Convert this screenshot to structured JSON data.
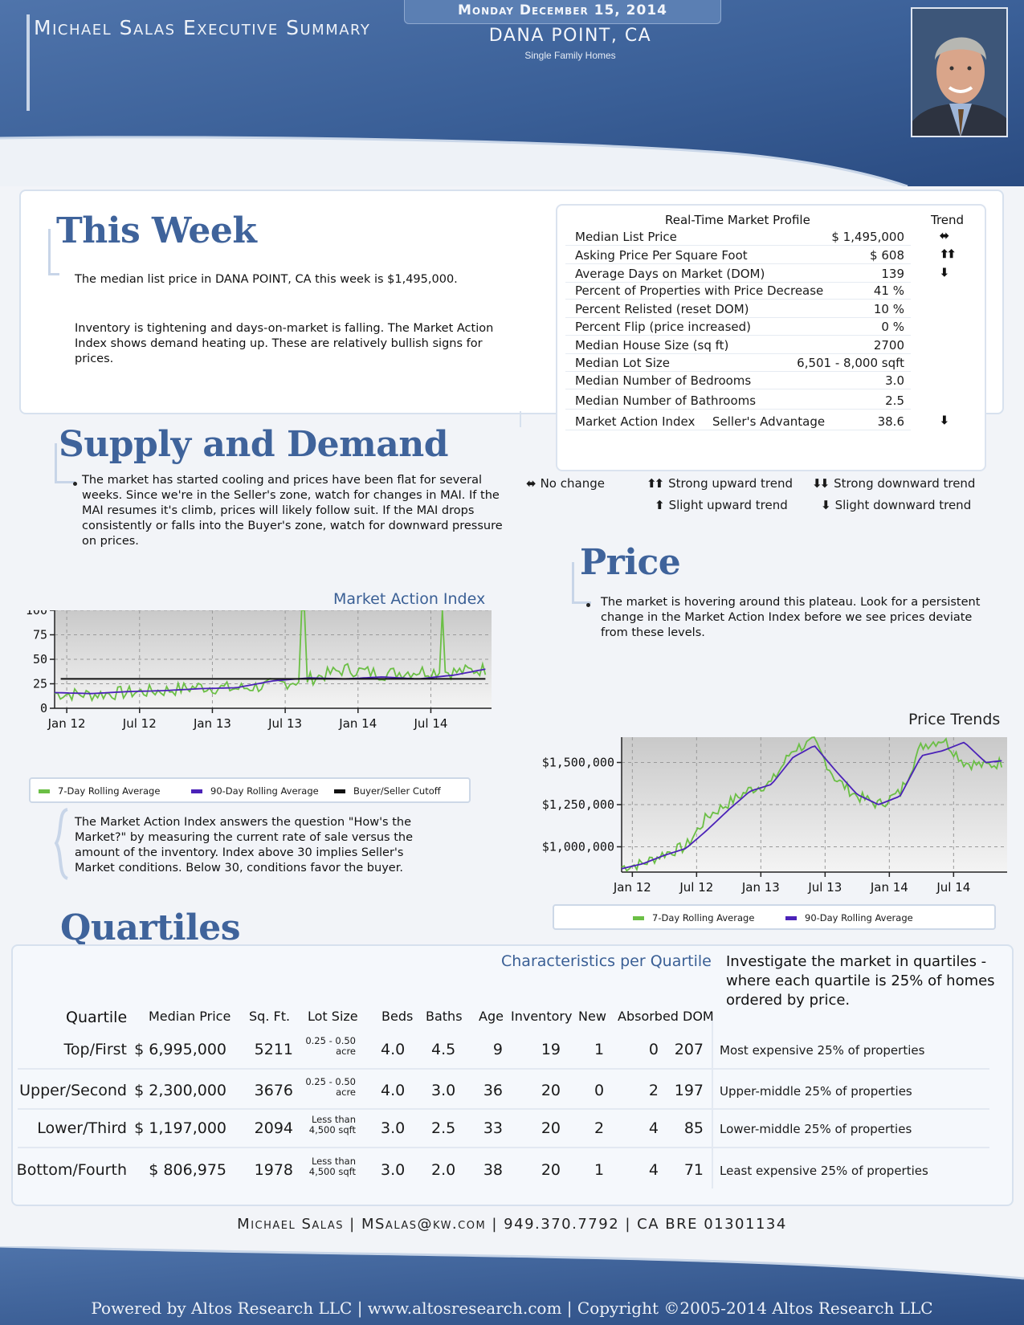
{
  "header": {
    "title": "Michael Salas Executive Summary",
    "date": "Monday December 15, 2014",
    "city": "DANA POINT, CA",
    "property_type": "Single Family Homes"
  },
  "this_week": {
    "title": "This Week",
    "paragraph1": "The median list price in DANA POINT, CA this week is $1,495,000.",
    "paragraph2": "Inventory is tightening and days-on-market is falling. The Market Action Index shows demand heating up. These are relatively bullish signs for prices."
  },
  "market_profile": {
    "title": "Real-Time Market Profile",
    "trend_header": "Trend",
    "rows": [
      {
        "label": "Median List Price",
        "mid": "",
        "value": "$ 1,495,000",
        "trend": "both"
      },
      {
        "label": "Asking Price Per Square Foot",
        "mid": "",
        "value": "$ 608",
        "trend": "strong-up"
      },
      {
        "label": "Average Days on Market (DOM)",
        "mid": "",
        "value": "139",
        "trend": "slight-down"
      },
      {
        "label": "Percent of Properties with Price Decrease",
        "mid": "",
        "value": "41 %",
        "trend": ""
      },
      {
        "label": "Percent Relisted (reset DOM)",
        "mid": "",
        "value": "10 %",
        "trend": ""
      },
      {
        "label": "Percent Flip (price increased)",
        "mid": "",
        "value": "0 %",
        "trend": ""
      },
      {
        "label": "Median House Size (sq ft)",
        "mid": "",
        "value": "2700",
        "trend": ""
      },
      {
        "label": "Median Lot Size",
        "mid": "",
        "value": "6,501 - 8,000 sqft",
        "trend": ""
      },
      {
        "label": "Median Number of Bedrooms",
        "mid": "",
        "value": "3.0",
        "trend": ""
      },
      {
        "label": "Median Number of Bathrooms",
        "mid": "",
        "value": "2.5",
        "trend": ""
      },
      {
        "label": "Market Action Index",
        "mid": "Seller's Advantage",
        "value": "38.6",
        "trend": "slight-down"
      }
    ],
    "legend": {
      "no_change": "No change",
      "strong_up": "Strong upward trend",
      "strong_down": "Strong downward trend",
      "slight_up": "Slight upward trend",
      "slight_down": "Slight downward trend"
    }
  },
  "supply_demand": {
    "title": "Supply and Demand",
    "text": "The market has started cooling and prices have been flat for several weeks.  Since we're in the Seller's zone, watch for changes in MAI.  If the MAI resumes it's climb, prices will likely follow suit.  If the MAI drops consistently or falls into the Buyer's zone, watch for downward pressure on prices.",
    "explainer": "The Market Action Index answers the question \"How's the Market?\" by measuring the current rate of sale versus the amount of the inventory.  Index above 30 implies Seller's Market conditions. Below 30, conditions favor the buyer."
  },
  "price": {
    "title": "Price",
    "text": "The market is hovering around this plateau. Look for a persistent change in the Market Action Index before we see prices deviate from these levels."
  },
  "chart_data": [
    {
      "type": "line",
      "title": "Market Action Index",
      "x_ticks": [
        "Jan 12",
        "Jul 12",
        "Jan 13",
        "Jul 13",
        "Jan 14",
        "Jul 14"
      ],
      "y_ticks": [
        "0",
        "25",
        "50",
        "75",
        "100"
      ],
      "ylim": [
        0,
        100
      ],
      "grid": true,
      "x_months": [
        0,
        3,
        6,
        9,
        12,
        15,
        18,
        21,
        24,
        27,
        30,
        33,
        35.5
      ],
      "series": [
        {
          "name": "7-Day Rolling Average",
          "color": "#6bbf45",
          "values": [
            15,
            14,
            16,
            18,
            22,
            20,
            24,
            30,
            40,
            35,
            38,
            37,
            40
          ],
          "spikes": [
            {
              "month": 20.5,
              "value": 100
            },
            {
              "month": 32,
              "value": 100
            }
          ]
        },
        {
          "name": "90-Day Rolling Average",
          "color": "#4b22b8",
          "values": [
            16,
            15,
            17,
            18,
            20,
            21,
            28,
            31,
            30,
            32,
            30,
            34,
            40
          ]
        },
        {
          "name": "Buyer/Seller Cutoff",
          "color": "#111111",
          "values": [
            30,
            30,
            30,
            30,
            30,
            30,
            30,
            30,
            30,
            30,
            30,
            30,
            30
          ]
        }
      ]
    },
    {
      "type": "line",
      "title": "Price Trends",
      "x_ticks": [
        "Jan 12",
        "Jul 12",
        "Jan 13",
        "Jul 13",
        "Jan 14",
        "Jul 14"
      ],
      "y_ticks": [
        "$1,000,000",
        "$1,250,000",
        "$1,500,000"
      ],
      "ylim": [
        850000,
        1650000
      ],
      "grid": true,
      "x_months": [
        0,
        2,
        4,
        6,
        8,
        10,
        12,
        14,
        16,
        18,
        20,
        22,
        24,
        26,
        28,
        30,
        32,
        34,
        35.5
      ],
      "series": [
        {
          "name": "7-Day Rolling Average",
          "color": "#6bbf45",
          "values": [
            880000,
            900000,
            960000,
            1000000,
            1180000,
            1260000,
            1340000,
            1380000,
            1580000,
            1620000,
            1400000,
            1300000,
            1250000,
            1320000,
            1600000,
            1640000,
            1500000,
            1480000,
            1500000
          ]
        },
        {
          "name": "90-Day Rolling Average",
          "color": "#4b22b8",
          "values": [
            870000,
            900000,
            950000,
            990000,
            1100000,
            1220000,
            1330000,
            1370000,
            1530000,
            1600000,
            1450000,
            1310000,
            1250000,
            1300000,
            1540000,
            1570000,
            1620000,
            1500000,
            1510000
          ]
        }
      ]
    }
  ],
  "mai_chart": {
    "title": "Market Action Index",
    "legend": [
      "7-Day Rolling Average",
      "90-Day Rolling Average",
      "Buyer/Seller Cutoff"
    ]
  },
  "price_chart": {
    "title": "Price Trends",
    "legend": [
      "7-Day Rolling Average",
      "90-Day Rolling Average"
    ]
  },
  "quartiles": {
    "title": "Quartiles",
    "subtitle": "Characteristics per Quartile",
    "note": "Investigate the market in quartiles - where each quartile is 25% of homes ordered by price.",
    "headers": [
      "Quartile",
      "Median Price",
      "Sq. Ft.",
      "Lot Size",
      "Beds",
      "Baths",
      "Age",
      "Inventory",
      "New",
      "Absorbed",
      "DOM"
    ],
    "rows": [
      {
        "quartile": "Top/First",
        "price": "$ 6,995,000",
        "sqft": "5211",
        "lot1": "0.25 - 0.50",
        "lot2": "acre",
        "beds": "4.0",
        "baths": "4.5",
        "age": "9",
        "inventory": "19",
        "new": "1",
        "absorbed": "0",
        "dom": "207",
        "desc": "Most expensive 25% of properties"
      },
      {
        "quartile": "Upper/Second",
        "price": "$ 2,300,000",
        "sqft": "3676",
        "lot1": "0.25 - 0.50",
        "lot2": "acre",
        "beds": "4.0",
        "baths": "3.0",
        "age": "36",
        "inventory": "20",
        "new": "0",
        "absorbed": "2",
        "dom": "197",
        "desc": "Upper-middle 25% of properties"
      },
      {
        "quartile": "Lower/Third",
        "price": "$ 1,197,000",
        "sqft": "2094",
        "lot1": "Less than",
        "lot2": "4,500 sqft",
        "beds": "3.0",
        "baths": "2.5",
        "age": "33",
        "inventory": "20",
        "new": "2",
        "absorbed": "4",
        "dom": "85",
        "desc": "Lower-middle 25% of properties"
      },
      {
        "quartile": "Bottom/Fourth",
        "price": "$ 806,975",
        "sqft": "1978",
        "lot1": "Less than",
        "lot2": "4,500 sqft",
        "beds": "3.0",
        "baths": "2.0",
        "age": "38",
        "inventory": "20",
        "new": "1",
        "absorbed": "4",
        "dom": "71",
        "desc": "Least expensive 25% of properties"
      }
    ]
  },
  "footer": {
    "contact": "Michael Salas | MSalas@kw.com | 949.370.7792 | CA BRE 01301134",
    "powered": "Powered by Altos Research LLC | www.altosresearch.com | Copyright ©2005-2014 Altos Research LLC"
  },
  "colors": {
    "band_dark": "#2d4f86",
    "band_light": "#6f94c6",
    "title_blue": "#3f639b",
    "green": "#6bbf45",
    "purple": "#4b22b8"
  }
}
